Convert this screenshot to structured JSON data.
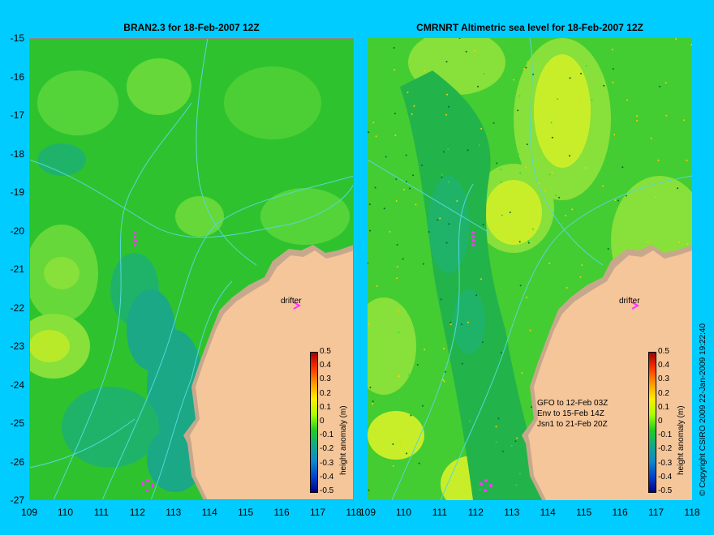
{
  "panels": [
    {
      "title": "BRAN2.3 for 18-Feb-2007 12Z"
    },
    {
      "title": "CMRNRT Altimetric sea level  for 18-Feb-2007 12Z"
    }
  ],
  "y_ticks": [
    "-15",
    "-16",
    "-17",
    "-18",
    "-19",
    "-20",
    "-21",
    "-22",
    "-23",
    "-24",
    "-25",
    "-26",
    "-27"
  ],
  "x_ticks": [
    "109",
    "110",
    "111",
    "112",
    "113",
    "114",
    "115",
    "116",
    "117",
    "118"
  ],
  "colorbar": {
    "label": "height anomaly (m)",
    "ticks": [
      "0.5",
      "0.4",
      "0.3",
      "0.2",
      "0.1",
      "0",
      "-0.1",
      "-0.2",
      "-0.3",
      "-0.4",
      "-0.5"
    ]
  },
  "drifter_label": "drifter",
  "altimetry_notes": [
    "GFO to 12-Feb 03Z",
    "Env to 15-Feb 14Z",
    "Jsn1 to 21-Feb 20Z"
  ],
  "copyright": "© Copyright CSIRO 2009   22-Jan-2009 19:22:40",
  "colors": {
    "background": "#00ccff",
    "ocean_base": "#22c022",
    "land": "#f5c69a",
    "land_shallow": "#c8a88c",
    "contour": "#55d8d8",
    "drifter": "#ff33ff"
  }
}
